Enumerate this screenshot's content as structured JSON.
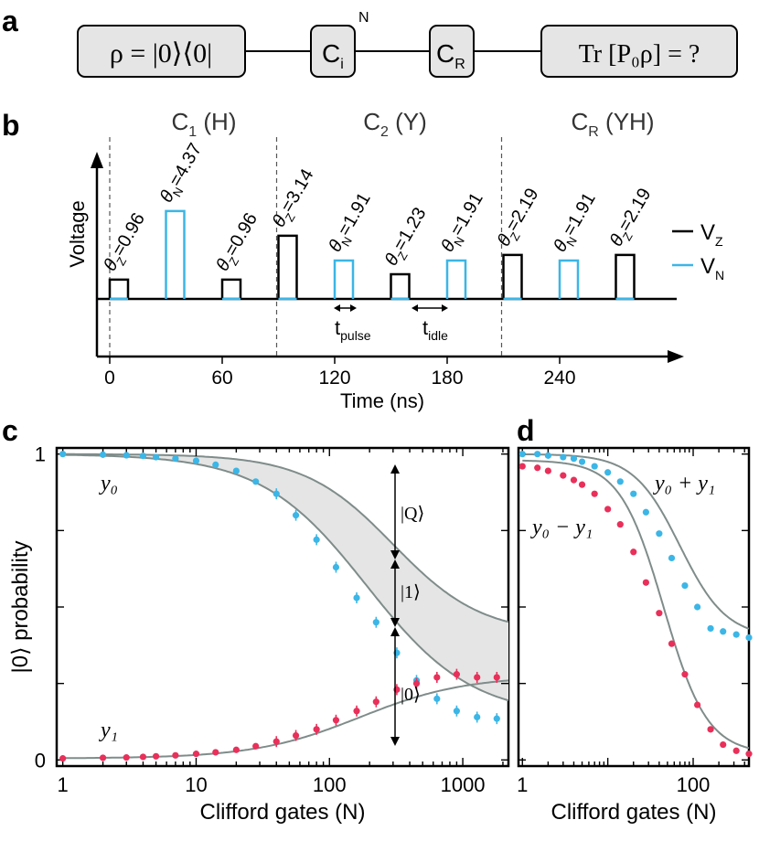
{
  "panel_labels": [
    "a",
    "b",
    "c",
    "d"
  ],
  "panel_a": {
    "box1": "ρ = |0⟩⟨0|",
    "box2": "C",
    "box2_sub": "i",
    "box2_sup": "N",
    "box3": "C",
    "box3_sub": "R",
    "box4": "Tr [P₀ρ] = ?"
  },
  "panel_b": {
    "section_labels": [
      {
        "main": "C",
        "sub": "1",
        "rest": " (H)"
      },
      {
        "main": "C",
        "sub": "2",
        "rest": " (Y)"
      },
      {
        "main": "C",
        "sub": "R",
        "rest": " (YH)"
      }
    ],
    "ylabel": "Voltage",
    "xlabel": "Time (ns)",
    "xticks": [
      "0",
      "60",
      "120",
      "180",
      "240"
    ],
    "legend": [
      {
        "main": "V",
        "sub": "Z",
        "color": "#000000"
      },
      {
        "main": "V",
        "sub": "N",
        "color": "#3bb6e6"
      }
    ],
    "t_pulse": {
      "main": "t",
      "sub": "pulse"
    },
    "t_idle": {
      "main": "t",
      "sub": "idle"
    },
    "pulses": [
      {
        "t": 0,
        "type": "Z",
        "amp": 0.96,
        "label": "θ",
        "sub": "Z",
        "val": "=0.96"
      },
      {
        "t": 30,
        "type": "N",
        "amp": 4.37,
        "label": "θ",
        "sub": "N",
        "val": "=4.37"
      },
      {
        "t": 60,
        "type": "Z",
        "amp": 0.96,
        "label": "θ",
        "sub": "Z",
        "val": "=0.96"
      },
      {
        "t": 90,
        "type": "Z",
        "amp": 3.14,
        "label": "θ",
        "sub": "Z",
        "val": "=3.14"
      },
      {
        "t": 120,
        "type": "N",
        "amp": 1.91,
        "label": "θ",
        "sub": "N",
        "val": "=1.91"
      },
      {
        "t": 150,
        "type": "Z",
        "amp": 1.23,
        "label": "θ",
        "sub": "Z",
        "val": "=1.23"
      },
      {
        "t": 180,
        "type": "N",
        "amp": 1.91,
        "label": "θ",
        "sub": "N",
        "val": "=1.91"
      },
      {
        "t": 210,
        "type": "Z",
        "amp": 2.19,
        "label": "θ",
        "sub": "Z",
        "val": "=2.19"
      },
      {
        "t": 240,
        "type": "N",
        "amp": 1.91,
        "label": "θ",
        "sub": "N",
        "val": "=1.91"
      },
      {
        "t": 270,
        "type": "Z",
        "amp": 2.19,
        "label": "θ",
        "sub": "Z",
        "val": "=2.19"
      }
    ]
  },
  "colors": {
    "cyan": "#3bb6e6",
    "red": "#e8305a",
    "fit": "#7f8c8a",
    "shade": "#e5e5e5"
  },
  "chart_data": [
    {
      "type": "scatter",
      "panel": "c",
      "xlabel": "Clifford gates (N)",
      "ylabel": "|0⟩ probability",
      "xscale": "log",
      "xlim": [
        0.9,
        2200
      ],
      "ylim": [
        -0.02,
        1.02
      ],
      "xticks": [
        "1",
        "10",
        "100",
        "1000"
      ],
      "yticks": [
        "1",
        "0"
      ],
      "series": [
        {
          "name": "y₀",
          "color": "#3bb6e6",
          "x": [
            1,
            2,
            3,
            4,
            5,
            7,
            10,
            14,
            20,
            28,
            40,
            56,
            80,
            112,
            160,
            224,
            320,
            450,
            640,
            900,
            1280,
            1800
          ],
          "y": [
            1.0,
            0.998,
            0.996,
            0.994,
            0.99,
            0.985,
            0.978,
            0.965,
            0.945,
            0.91,
            0.87,
            0.8,
            0.72,
            0.63,
            0.53,
            0.45,
            0.35,
            0.26,
            0.2,
            0.16,
            0.14,
            0.135
          ]
        },
        {
          "name": "y₁",
          "color": "#e8305a",
          "x": [
            1,
            2,
            3,
            4,
            5,
            7,
            10,
            14,
            20,
            28,
            40,
            56,
            80,
            112,
            160,
            224,
            320,
            450,
            640,
            900,
            1280,
            1800
          ],
          "y": [
            0.005,
            0.007,
            0.008,
            0.01,
            0.012,
            0.015,
            0.02,
            0.025,
            0.033,
            0.045,
            0.06,
            0.08,
            0.1,
            0.13,
            0.16,
            0.19,
            0.23,
            0.25,
            0.27,
            0.28,
            0.27,
            0.27
          ]
        }
      ],
      "annotations": [
        "|Q⟩",
        "|1⟩",
        "|0⟩"
      ],
      "series_labels": [
        "y₀",
        "y₁"
      ]
    },
    {
      "type": "scatter",
      "panel": "d",
      "xlabel": "Clifford gates (N)",
      "xscale": "log",
      "xlim": [
        0.9,
        450
      ],
      "ylim": [
        -0.02,
        1.02
      ],
      "xticks": [
        "1",
        "100"
      ],
      "series": [
        {
          "name": "y₀ + y₁",
          "color": "#3bb6e6",
          "x": [
            1,
            1.5,
            2,
            3,
            4,
            5,
            7,
            10,
            14,
            20,
            28,
            40,
            56,
            80,
            112,
            160,
            224,
            320,
            450
          ],
          "y": [
            1.0,
            1.0,
            0.995,
            0.99,
            0.985,
            0.975,
            0.96,
            0.94,
            0.91,
            0.87,
            0.81,
            0.74,
            0.66,
            0.57,
            0.5,
            0.43,
            0.42,
            0.41,
            0.4
          ]
        },
        {
          "name": "y₀ − y₁",
          "color": "#e8305a",
          "x": [
            1,
            1.5,
            2,
            3,
            4,
            5,
            7,
            10,
            14,
            20,
            28,
            40,
            56,
            80,
            112,
            160,
            224,
            320,
            450
          ],
          "y": [
            0.96,
            0.955,
            0.945,
            0.93,
            0.915,
            0.9,
            0.87,
            0.82,
            0.77,
            0.68,
            0.58,
            0.48,
            0.38,
            0.28,
            0.18,
            0.1,
            0.05,
            0.03,
            0.02
          ]
        }
      ],
      "series_labels": [
        "y₀ + y₁",
        "y₀ − y₁"
      ]
    }
  ]
}
